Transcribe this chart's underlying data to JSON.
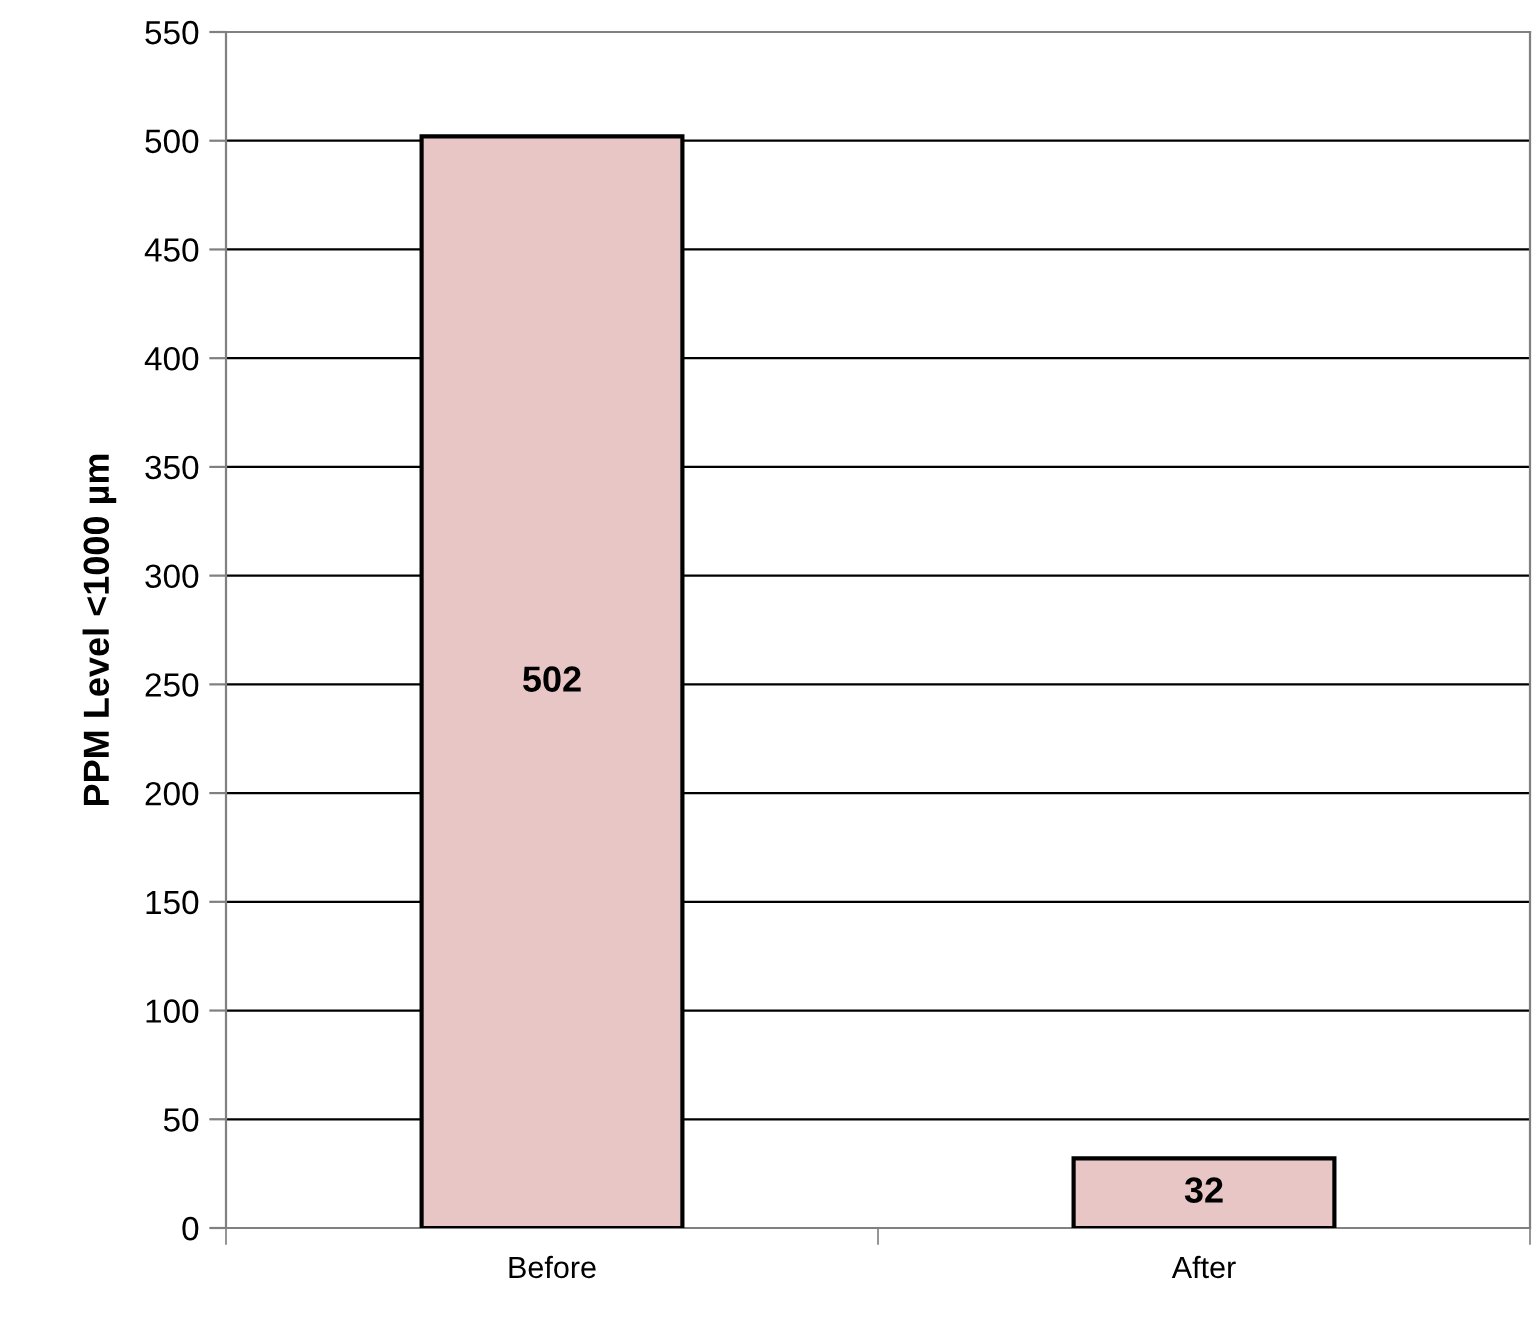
{
  "chart_data": {
    "type": "bar",
    "ylabel": "PPM Level <1000 µm",
    "categories": [
      "Before",
      "After"
    ],
    "values": [
      502,
      32
    ],
    "color": "#e8c6c6",
    "ylim": [
      0,
      550
    ],
    "yticks": [
      0,
      50,
      100,
      150,
      200,
      250,
      300,
      350,
      400,
      450,
      500,
      550
    ],
    "grid": "y",
    "data_labels": true
  }
}
